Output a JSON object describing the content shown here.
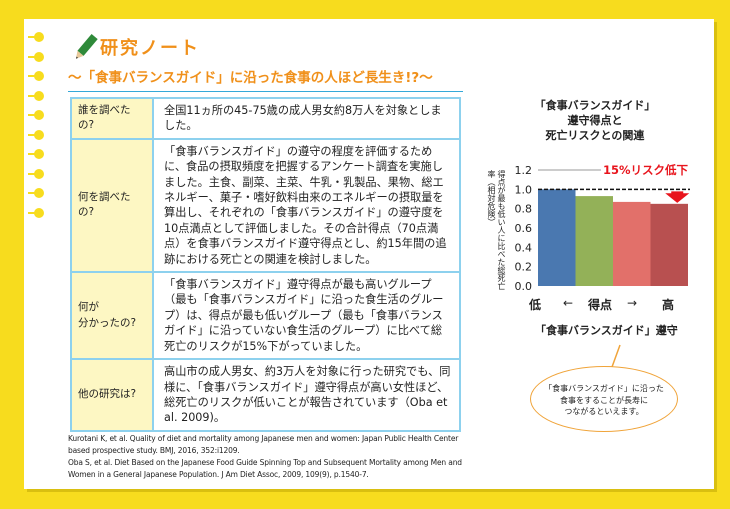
{
  "header": {
    "title": "研究ノート",
    "subtitle": "〜「食事バランスガイド」に沿った食事の人ほど長生き!?〜"
  },
  "table": [
    {
      "label": "誰を調べたの?",
      "text": "全国11ヵ所の45-75歳の成人男女約8万人を対象としました。"
    },
    {
      "label": "何を調べたの?",
      "text": "「食事バランスガイド」の遵守の程度を評価するために、食品の摂取頻度を把握するアンケート調査を実施しました。主食、副菜、主菜、牛乳・乳製品、果物、総エネルギー、菓子・嗜好飲料由来のエネルギーの摂取量を算出し、それぞれの「食事バランスガイド」の遵守度を10点満点として評価しました。その合計得点（70点満点）を食事バランスガイド遵守得点とし、約15年間の追跡における死亡との関連を検討しました。"
    },
    {
      "label": "何が\n分かったの?",
      "text": "「食事バランスガイド」遵守得点が最も高いグループ（最も「食事バランスガイド」に沿った食生活のグループ）は、得点が最も低いグループ（最も「食事バランスガイド」に沿っていない食生活のグループ）に比べて総死亡のリスクが15%下がっていました。"
    },
    {
      "label": "他の研究は?",
      "text": "高山市の成人男女、約3万人を対象に行った研究でも、同様に、「食事バランスガイド」遵守得点が高い女性ほど、総死亡のリスクが低いことが報告されています（Oba et al. 2009)。"
    }
  ],
  "references": [
    "Kurotani K, et al. Quality of diet and mortality among Japanese men and women: Japan Public Health Center based prospective study. BMJ, 2016, 352:i1209.",
    "Oba S, et al. Diet Based on the Japanese Food Guide Spinning Top and Subsequent Mortality among Men and Women in a General Japanese Population. J Am Diet Assoc, 2009, 109(9), p.1540-7."
  ],
  "chart_data": {
    "type": "bar",
    "title": "「食事バランスガイド」\n遵守得点と\n死亡リスクとの関連",
    "ylabel": "得点が最も低い人に比べた総死亡率（相対危険）",
    "xlabel": "「食事バランスガイド」遵守",
    "x_axis_labels": {
      "low": "低",
      "arrow_left": "←",
      "mid": "得点",
      "arrow_right": "→",
      "high": "高"
    },
    "ylim": [
      0,
      1.2
    ],
    "yticks": [
      "0.0",
      "0.2",
      "0.4",
      "0.6",
      "0.8",
      "1.0",
      "1.2"
    ],
    "values": [
      1.0,
      0.93,
      0.87,
      0.85
    ],
    "colors": [
      "#4a78b0",
      "#93b158",
      "#e2706a",
      "#b85050"
    ],
    "reference_line": 1.0,
    "annotation": "15%リスク低下",
    "annotation_color": "#e8141c"
  },
  "bubble": {
    "text": "「食事バランスガイド」に沿った\n食事をすることが長寿に\nつながるといえます。"
  }
}
